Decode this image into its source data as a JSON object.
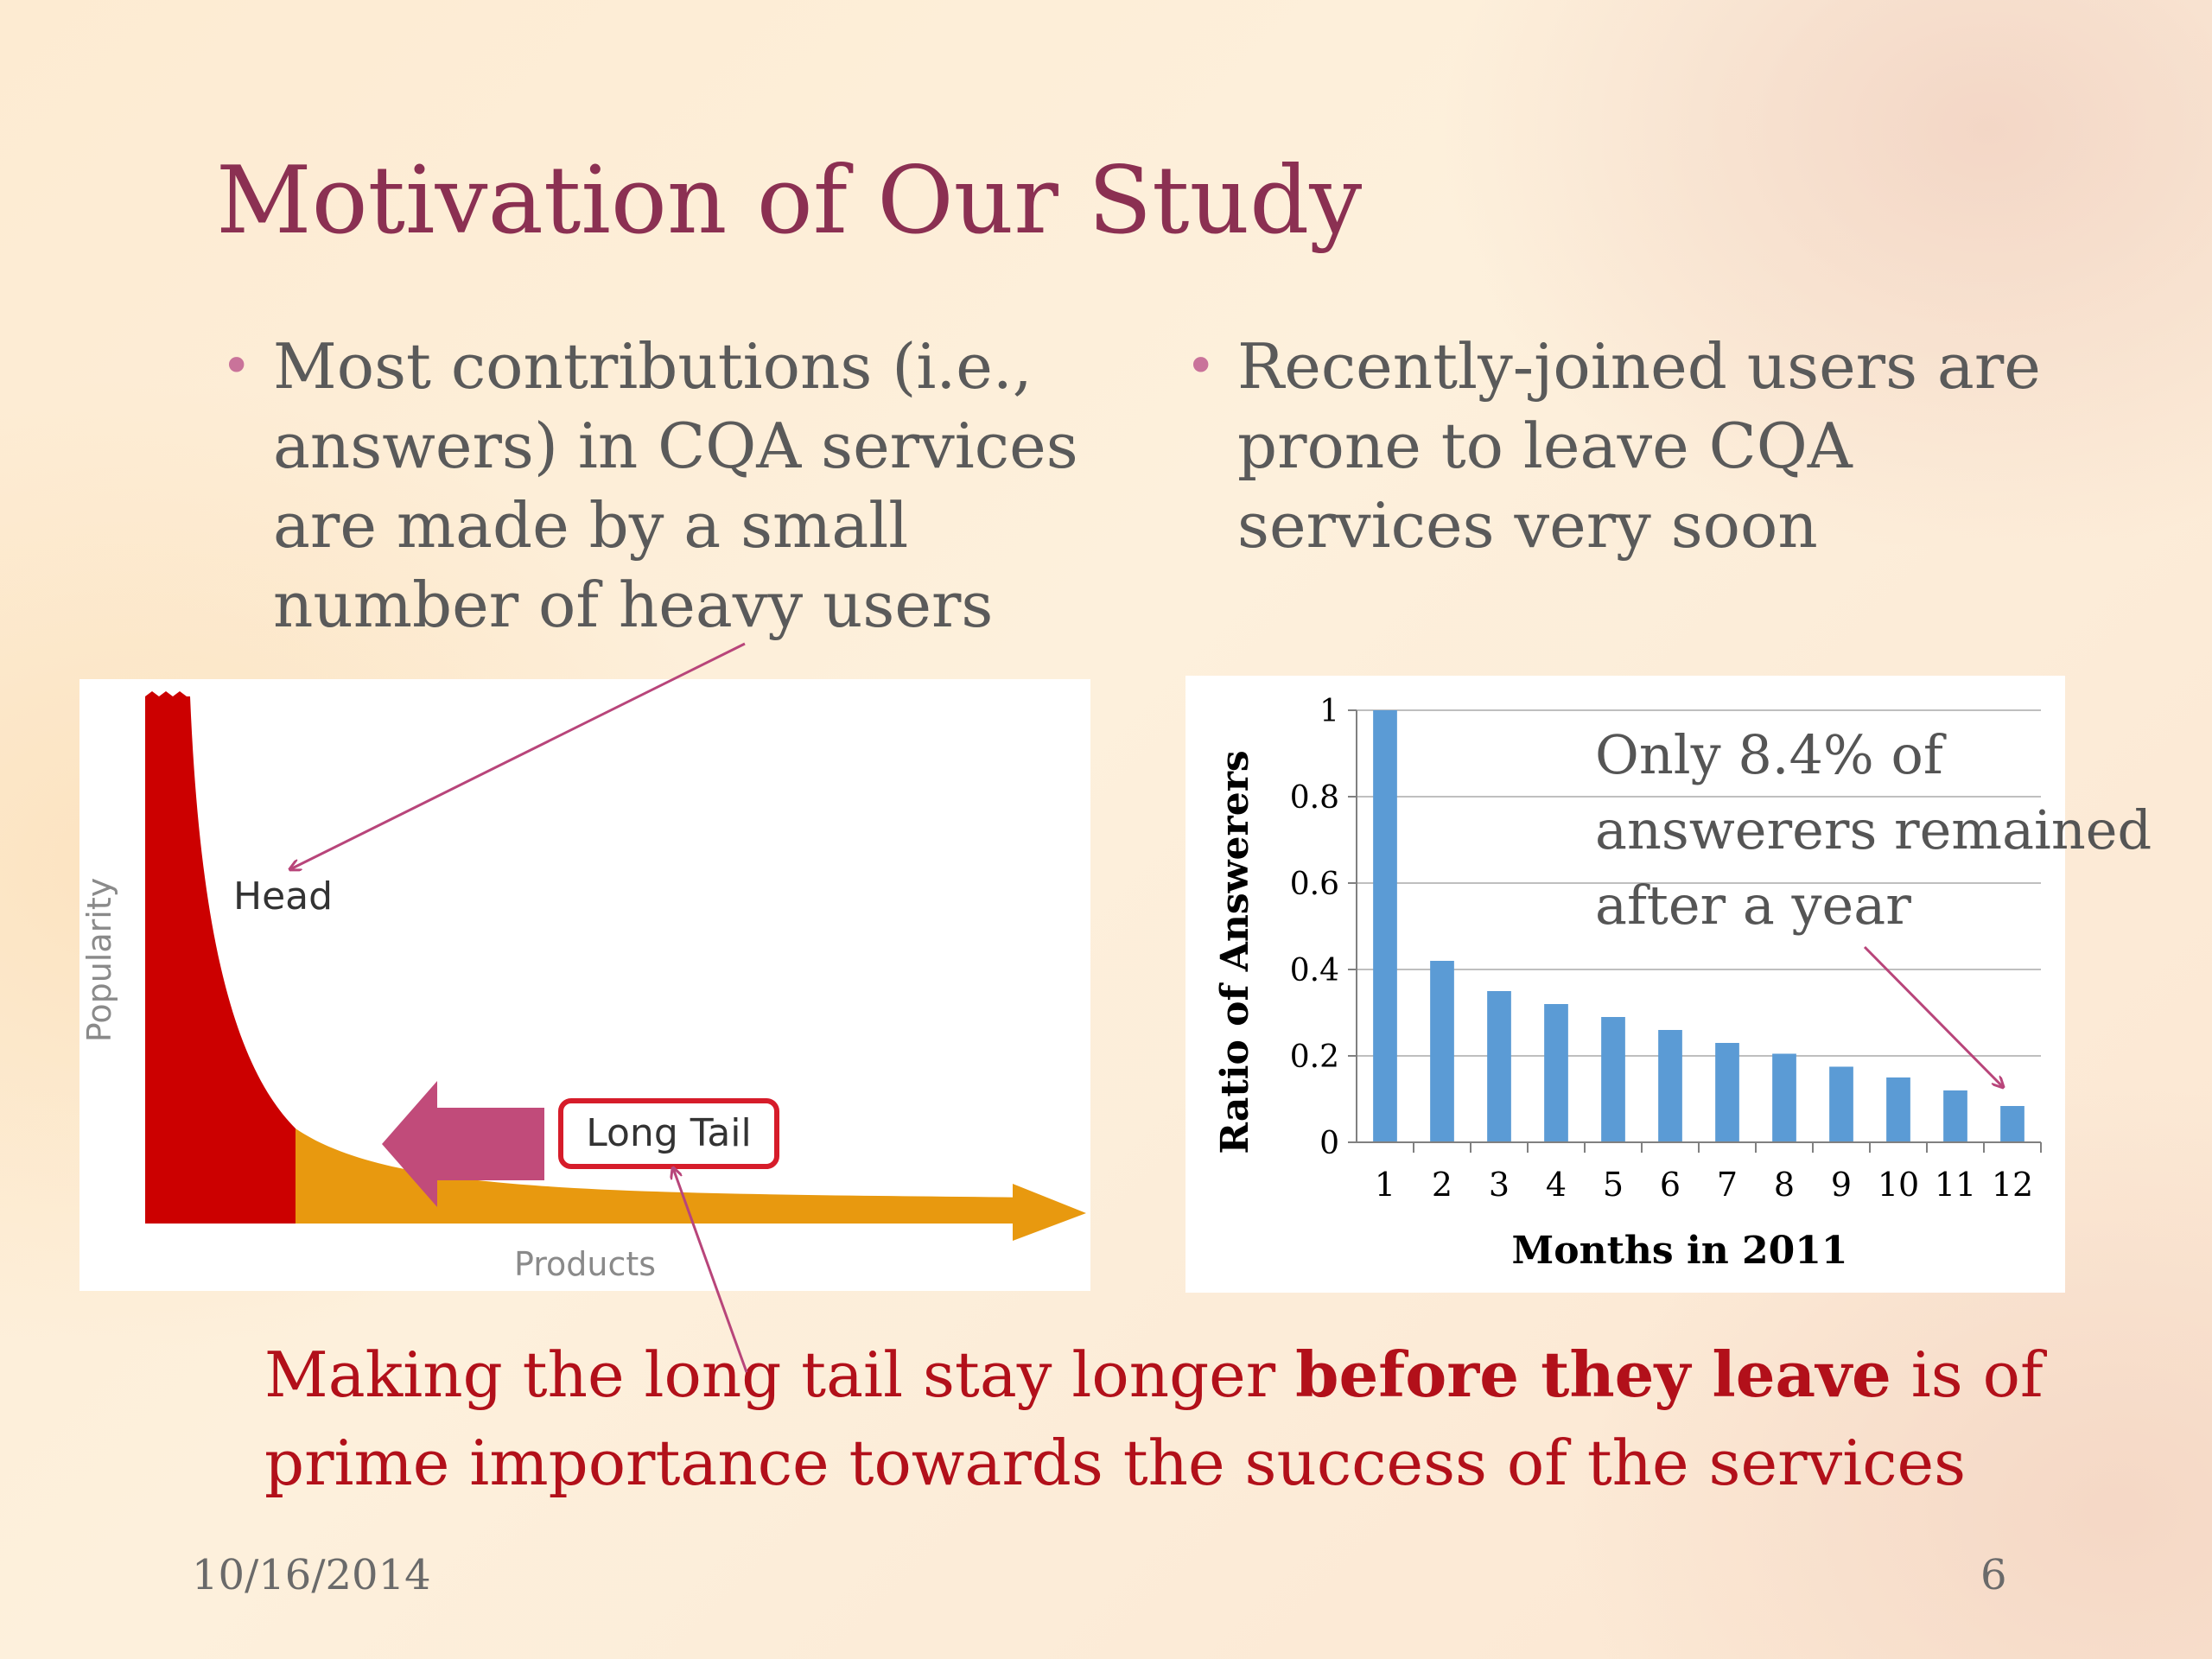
{
  "slide": {
    "title": "Motivation of Our Study",
    "date": "10/16/2014",
    "page_number": "6"
  },
  "bullets": {
    "left": [
      "Most contributions (i.e.,",
      "answers) in CQA services",
      "are made by a small",
      "number of heavy users"
    ],
    "right": [
      "Recently-joined users are",
      "prone to leave CQA",
      "services very soon"
    ]
  },
  "long_tail_figure": {
    "ylabel": "Popularity",
    "xlabel": "Products",
    "head_label": "Head",
    "tail_label": "Long Tail",
    "colors": {
      "head": "#cc0000",
      "tail": "#e8990f",
      "arrow": "#c14b7a",
      "tail_box": "#d61c2a"
    }
  },
  "chart_data": {
    "type": "bar",
    "categories": [
      "1",
      "2",
      "3",
      "4",
      "5",
      "6",
      "7",
      "8",
      "9",
      "10",
      "11",
      "12"
    ],
    "values": [
      1.0,
      0.42,
      0.35,
      0.32,
      0.29,
      0.26,
      0.23,
      0.205,
      0.175,
      0.15,
      0.12,
      0.084
    ],
    "xlabel": "Months in 2011",
    "ylabel": "Ratio of Answerers",
    "ylim": [
      0,
      1
    ],
    "yticks": [
      "0",
      "0.2",
      "0.4",
      "0.6",
      "0.8",
      "1"
    ],
    "grid": true,
    "bar_color": "#5b9bd5",
    "annotation": [
      "Only 8.4% of",
      "answerers remained",
      "after a year"
    ]
  },
  "conclusion": {
    "line1_pre": "Making the long tail stay longer ",
    "line1_bold": "before they leave",
    "line1_post": " is of",
    "line2": "prime importance towards the success of the services"
  },
  "colors": {
    "title": "#8b3052",
    "body_text": "#5a5a5a",
    "conclusion_text": "#b2101a",
    "pointer_arrow": "#b8457a"
  }
}
